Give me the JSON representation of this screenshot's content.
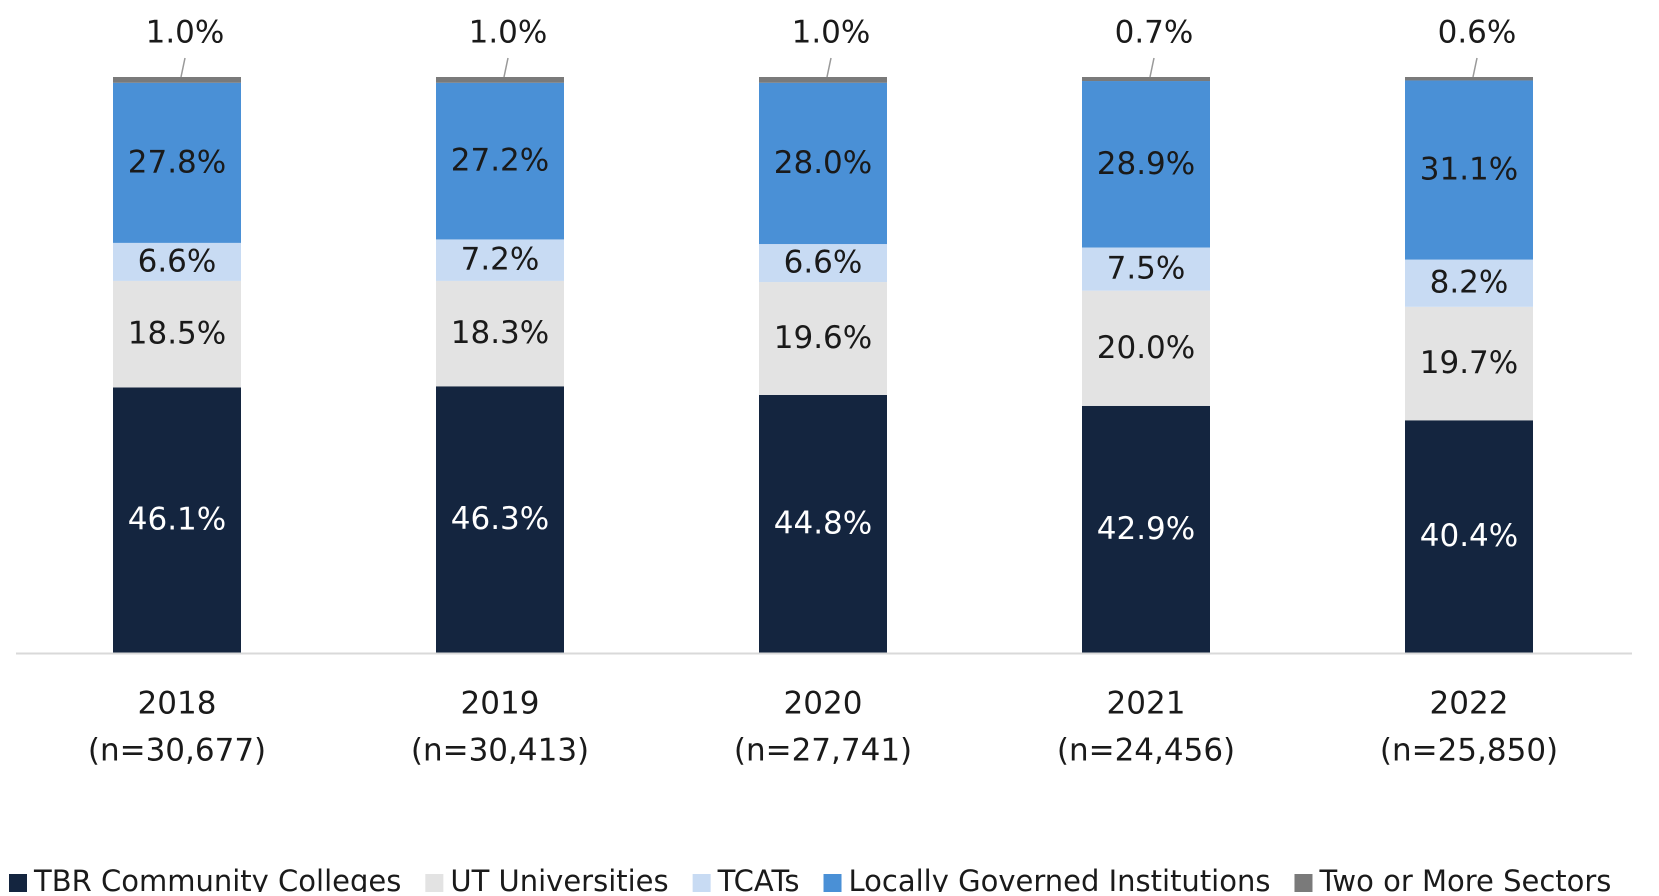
{
  "chart_data": {
    "type": "stacked_bar",
    "categories": [
      [
        "2018",
        "(n=30,677)"
      ],
      [
        "2019",
        "(n=30,413)"
      ],
      [
        "2020",
        "(n=27,741)"
      ],
      [
        "2021",
        "(n=24,456)"
      ],
      [
        "2022",
        "(n=25,850)"
      ]
    ],
    "ylim": [
      0,
      100
    ],
    "series": [
      {
        "name": "TBR Community Colleges",
        "color": "#14253f",
        "values": [
          46.1,
          46.3,
          44.8,
          42.9,
          40.4
        ],
        "value_labels": [
          "46.1%",
          "46.3%",
          "44.8%",
          "42.9%",
          "40.4%"
        ]
      },
      {
        "name": "UT Universities",
        "color": "#e3e3e3",
        "values": [
          18.5,
          18.3,
          19.6,
          20.0,
          19.7
        ],
        "value_labels": [
          "18.5%",
          "18.3%",
          "19.6%",
          "20.0%",
          "19.7%"
        ]
      },
      {
        "name": "TCATs",
        "color": "#c8dbf3",
        "values": [
          6.6,
          7.2,
          6.6,
          7.5,
          8.2
        ],
        "value_labels": [
          "6.6%",
          "7.2%",
          "6.6%",
          "7.5%",
          "8.2%"
        ]
      },
      {
        "name": "Locally Governed Institutions",
        "color": "#4a90d6",
        "values": [
          27.8,
          27.2,
          28.0,
          28.9,
          31.1
        ],
        "value_labels": [
          "27.8%",
          "27.2%",
          "28.0%",
          "28.9%",
          "31.1%"
        ]
      },
      {
        "name": "Two or More Sectors",
        "color": "#7a7a7a",
        "values": [
          1.0,
          1.0,
          1.0,
          0.7,
          0.6
        ],
        "value_labels": [
          "1.0%",
          "1.0%",
          "1.0%",
          "0.7%",
          "0.6%"
        ]
      }
    ]
  }
}
